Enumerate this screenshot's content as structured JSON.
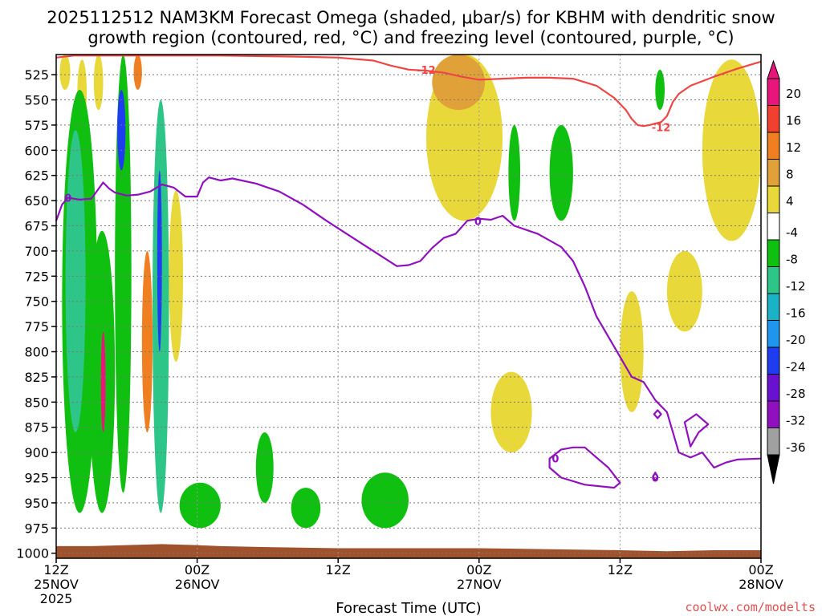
{
  "chart_data": {
    "type": "heatmap",
    "title_lines": [
      "2025112512 NAM3KM Forecast Omega (shaded, μbar/s) for KBHM with dendritic snow",
      "growth region (contoured, red, °C) and freezing level (contoured, purple, °C)"
    ],
    "xlabel": "Forecast Time (UTC)",
    "credit": "coolwx.com/modelts",
    "x_ticks": [
      {
        "label": [
          "12Z",
          "25NOV",
          "2025"
        ],
        "hour": 0
      },
      {
        "label": [
          "00Z",
          "26NOV"
        ],
        "hour": 12
      },
      {
        "label": [
          "12Z",
          ""
        ],
        "hour": 24
      },
      {
        "label": [
          "00Z",
          "27NOV"
        ],
        "hour": 36
      },
      {
        "label": [
          "12Z",
          ""
        ],
        "hour": 48
      },
      {
        "label": [
          "00Z",
          "28NOV"
        ],
        "hour": 60
      }
    ],
    "xlim_hours": [
      0,
      60
    ],
    "y_ticks": [
      "525",
      "550",
      "575",
      "600",
      "625",
      "650",
      "675",
      "700",
      "725",
      "750",
      "775",
      "800",
      "825",
      "850",
      "875",
      "900",
      "925",
      "950",
      "975",
      "1000"
    ],
    "ylim_hpa": [
      1005,
      505
    ],
    "colorbar": {
      "labels": [
        "20",
        "16",
        "12",
        "8",
        "4",
        "-4",
        "-8",
        "-12",
        "-16",
        "-20",
        "-24",
        "-28",
        "-32",
        "-36"
      ],
      "colors": [
        "#e8157a",
        "#f04030",
        "#f07f22",
        "#e0a238",
        "#e8d83a",
        "#ffffff",
        "#10c010",
        "#2ec588",
        "#1ab2c6",
        "#1e96f0",
        "#1e3cf0",
        "#6a10d0",
        "#9010c0",
        "#a0a0a0"
      ]
    },
    "contour_labels": {
      "dgz": "-12",
      "freezing": "0"
    },
    "contour_colors": {
      "dgz": "#f04545",
      "freezing": "#9010c0"
    },
    "dgz_minus12_contour": [
      [
        0,
        508
      ],
      [
        1.5,
        506
      ],
      [
        4,
        506
      ],
      [
        8,
        506
      ],
      [
        14,
        506
      ],
      [
        20,
        507
      ],
      [
        24,
        508
      ],
      [
        27,
        511
      ],
      [
        28.5,
        516
      ],
      [
        30,
        520
      ],
      [
        31.5,
        521
      ],
      [
        33,
        523
      ],
      [
        34.5,
        527
      ],
      [
        36,
        530
      ],
      [
        38,
        529
      ],
      [
        40,
        528
      ],
      [
        42,
        528
      ],
      [
        44,
        529
      ],
      [
        46,
        536
      ],
      [
        47.5,
        548
      ],
      [
        48.5,
        560
      ],
      [
        49,
        569
      ],
      [
        49.5,
        575
      ],
      [
        50,
        576
      ],
      [
        50.5,
        575
      ],
      [
        51.5,
        572
      ],
      [
        52,
        566
      ],
      [
        52.5,
        552
      ],
      [
        53,
        544
      ],
      [
        54,
        536
      ],
      [
        56,
        527
      ],
      [
        58,
        519
      ],
      [
        60,
        512
      ]
    ],
    "freezing_level_contour": [
      [
        0,
        670
      ],
      [
        0.5,
        654
      ],
      [
        1,
        647
      ],
      [
        2,
        649
      ],
      [
        3,
        648
      ],
      [
        3.5,
        640
      ],
      [
        4,
        632
      ],
      [
        4.5,
        638
      ],
      [
        5,
        642
      ],
      [
        6,
        645
      ],
      [
        7,
        644
      ],
      [
        8,
        641
      ],
      [
        9,
        634
      ],
      [
        10,
        637
      ],
      [
        11,
        646
      ],
      [
        12,
        646
      ],
      [
        12.5,
        632
      ],
      [
        13,
        627
      ],
      [
        14,
        630
      ],
      [
        15,
        628
      ],
      [
        17,
        633
      ],
      [
        19,
        641
      ],
      [
        21,
        654
      ],
      [
        23,
        670
      ],
      [
        25,
        685
      ],
      [
        27,
        700
      ],
      [
        29,
        715
      ],
      [
        30,
        714
      ],
      [
        31,
        710
      ],
      [
        32,
        697
      ],
      [
        33,
        687
      ],
      [
        34,
        683
      ],
      [
        35,
        670
      ],
      [
        36,
        668
      ],
      [
        37,
        669
      ],
      [
        38,
        665
      ],
      [
        39,
        675
      ],
      [
        41,
        683
      ],
      [
        43,
        696
      ],
      [
        44,
        710
      ],
      [
        45,
        735
      ],
      [
        46,
        765
      ],
      [
        47,
        785
      ],
      [
        48,
        805
      ],
      [
        49,
        825
      ],
      [
        50,
        830
      ],
      [
        51,
        848
      ],
      [
        52,
        860
      ],
      [
        52.5,
        880
      ],
      [
        53,
        900
      ],
      [
        54,
        905
      ],
      [
        55,
        900
      ],
      [
        56,
        915
      ],
      [
        57,
        910
      ],
      [
        58,
        907
      ],
      [
        60,
        906
      ]
    ],
    "freezing_level_islands": [
      [
        [
          42,
          906
        ],
        [
          43,
          897
        ],
        [
          44,
          895
        ],
        [
          45,
          895
        ],
        [
          46,
          905
        ],
        [
          47,
          915
        ],
        [
          48,
          930
        ],
        [
          47.5,
          935
        ],
        [
          45,
          932
        ],
        [
          43,
          925
        ],
        [
          42,
          915
        ],
        [
          42,
          906
        ]
      ],
      [
        [
          50.9,
          862
        ],
        [
          51.2,
          858
        ],
        [
          51.5,
          862
        ],
        [
          51.2,
          866
        ],
        [
          50.9,
          862
        ]
      ],
      [
        [
          53.5,
          870
        ],
        [
          54.5,
          862
        ],
        [
          55.5,
          872
        ],
        [
          54.7,
          880
        ],
        [
          54,
          894
        ],
        [
          53.5,
          870
        ]
      ],
      [
        [
          50.8,
          924
        ],
        [
          51,
          920
        ],
        [
          51.2,
          924
        ],
        [
          51,
          928
        ],
        [
          50.8,
          924
        ]
      ]
    ],
    "omega_regions": [
      {
        "value_range": "4 to 8",
        "color": "#e8d83a",
        "hours": [
          0.3,
          1.2
        ],
        "hpa": [
          505,
          540
        ]
      },
      {
        "value_range": "4 to 8",
        "color": "#e8d83a",
        "hours": [
          1.8,
          2.6
        ],
        "hpa": [
          510,
          575
        ]
      },
      {
        "value_range": "4 to 8",
        "color": "#e8d83a",
        "hours": [
          3.2,
          4.0
        ],
        "hpa": [
          505,
          560
        ]
      },
      {
        "value_range": "-4 to -8",
        "color": "#10c010",
        "hours": [
          0.5,
          3.5
        ],
        "hpa": [
          540,
          960
        ]
      },
      {
        "value_range": "-8 to -12",
        "color": "#2ec588",
        "hours": [
          0.8,
          2.5
        ],
        "hpa": [
          580,
          880
        ]
      },
      {
        "value_range": "-4 to -8",
        "color": "#10c010",
        "hours": [
          2.8,
          5.0
        ],
        "hpa": [
          680,
          960
        ]
      },
      {
        "value_range": "12 to 20",
        "color": "#e8157a",
        "hours": [
          3.8,
          4.2
        ],
        "hpa": [
          780,
          880
        ]
      },
      {
        "value_range": "-4 to -8",
        "color": "#10c010",
        "hours": [
          5.0,
          6.4
        ],
        "hpa": [
          505,
          940
        ]
      },
      {
        "value_range": "-16 to -24",
        "color": "#1e3cf0",
        "hours": [
          5.2,
          5.9
        ],
        "hpa": [
          540,
          620
        ]
      },
      {
        "value_range": "4 to 16",
        "color": "#f07f22",
        "hours": [
          6.6,
          7.3
        ],
        "hpa": [
          505,
          540
        ]
      },
      {
        "value_range": "4 to 16",
        "color": "#f07f22",
        "hours": [
          7.3,
          8.2
        ],
        "hpa": [
          700,
          880
        ]
      },
      {
        "value_range": "-4 to -12",
        "color": "#2ec588",
        "hours": [
          8.2,
          9.6
        ],
        "hpa": [
          550,
          960
        ]
      },
      {
        "value_range": "-20 to -24",
        "color": "#1e3cf0",
        "hours": [
          8.6,
          9.0
        ],
        "hpa": [
          620,
          800
        ]
      },
      {
        "value_range": "4 to 8",
        "color": "#e8d83a",
        "hours": [
          9.6,
          10.8
        ],
        "hpa": [
          640,
          810
        ]
      },
      {
        "value_range": "-4 to -8",
        "color": "#10c010",
        "hours": [
          10.5,
          14.0
        ],
        "hpa": [
          930,
          975
        ]
      },
      {
        "value_range": "-4 to -8",
        "color": "#10c010",
        "hours": [
          17.0,
          18.5
        ],
        "hpa": [
          880,
          950
        ]
      },
      {
        "value_range": "-4 to -8",
        "color": "#10c010",
        "hours": [
          20.0,
          22.5
        ],
        "hpa": [
          935,
          975
        ]
      },
      {
        "value_range": "-4 to -8",
        "color": "#10c010",
        "hours": [
          26.0,
          30.0
        ],
        "hpa": [
          920,
          975
        ]
      },
      {
        "value_range": "4 to 8",
        "color": "#e8d83a",
        "hours": [
          31.5,
          38.0
        ],
        "hpa": [
          505,
          670
        ]
      },
      {
        "value_range": "8 to 12",
        "color": "#e0a238",
        "hours": [
          32.0,
          36.5
        ],
        "hpa": [
          505,
          560
        ]
      },
      {
        "value_range": "-4 to -8",
        "color": "#10c010",
        "hours": [
          38.5,
          39.5
        ],
        "hpa": [
          575,
          670
        ]
      },
      {
        "value_range": "-4 to -8",
        "color": "#10c010",
        "hours": [
          42.0,
          44.0
        ],
        "hpa": [
          575,
          670
        ]
      },
      {
        "value_range": "4 to 8",
        "color": "#e8d83a",
        "hours": [
          37.0,
          40.5
        ],
        "hpa": [
          820,
          900
        ]
      },
      {
        "value_range": "4 to 8",
        "color": "#e8d83a",
        "hours": [
          55.0,
          60.0
        ],
        "hpa": [
          510,
          690
        ]
      },
      {
        "value_range": "-4 to -8",
        "color": "#10c010",
        "hours": [
          51.0,
          51.8
        ],
        "hpa": [
          520,
          560
        ]
      },
      {
        "value_range": "4 to 8",
        "color": "#e8d83a",
        "hours": [
          52.0,
          55.0
        ],
        "hpa": [
          700,
          780
        ]
      },
      {
        "value_range": "4 to 8",
        "color": "#e8d83a",
        "hours": [
          48.0,
          50.0
        ],
        "hpa": [
          740,
          860
        ]
      }
    ],
    "surface_pressure_hpa": [
      [
        0,
        993
      ],
      [
        3,
        993
      ],
      [
        6,
        992
      ],
      [
        9,
        991
      ],
      [
        12,
        992
      ],
      [
        14,
        993
      ],
      [
        18,
        994
      ],
      [
        24,
        995
      ],
      [
        30,
        995
      ],
      [
        36,
        995
      ],
      [
        42,
        996
      ],
      [
        48,
        997
      ],
      [
        52,
        998
      ],
      [
        56,
        997
      ],
      [
        60,
        997
      ]
    ],
    "surface_color": "#a0522d"
  }
}
